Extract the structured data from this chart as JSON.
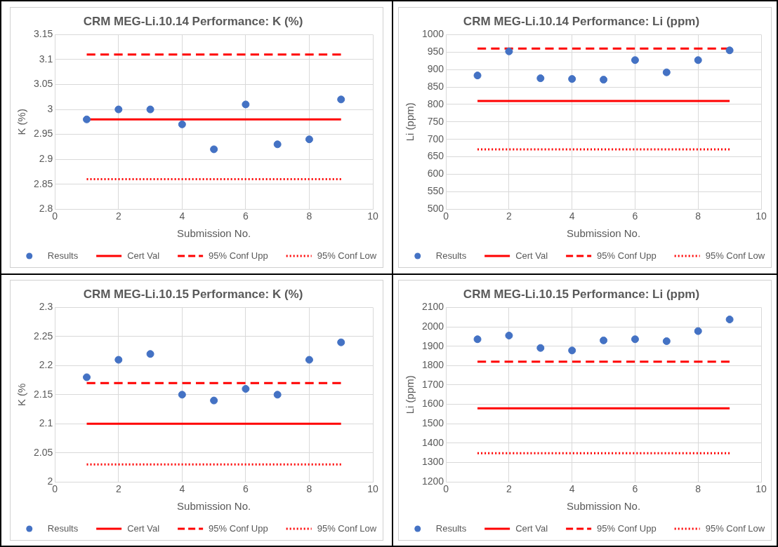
{
  "chart_data": [
    {
      "type": "scatter",
      "title": "CRM MEG-Li.10.14 Performance: K (%)",
      "xlabel": "Submission No.",
      "ylabel": "K (%)",
      "xlim": [
        0,
        10
      ],
      "xticks": [
        0,
        2,
        4,
        6,
        8,
        10
      ],
      "ylim": [
        2.8,
        3.15
      ],
      "yticks": [
        2.8,
        2.85,
        2.9,
        2.95,
        3,
        3.05,
        3.1,
        3.15
      ],
      "grid": true,
      "legend": "bottom",
      "series": [
        {
          "name": "Results",
          "type": "scatter",
          "marker": "circle",
          "color": "#4472c4",
          "x": [
            1,
            2,
            3,
            4,
            5,
            6,
            7,
            8,
            9
          ],
          "values": [
            2.98,
            3.0,
            3.0,
            2.97,
            2.92,
            3.01,
            2.93,
            2.94,
            3.02
          ]
        },
        {
          "name": "Cert Val",
          "type": "line",
          "marker": "none",
          "line_style": "solid",
          "color": "#ff0000",
          "x": [
            1,
            9
          ],
          "values": [
            2.98,
            2.98
          ]
        },
        {
          "name": "95% Conf Upp",
          "type": "line",
          "marker": "none",
          "line_style": "dashed",
          "color": "#ff0000",
          "x": [
            1,
            9
          ],
          "values": [
            3.11,
            3.11
          ]
        },
        {
          "name": "95% Conf Low",
          "type": "line",
          "marker": "none",
          "line_style": "dotted",
          "color": "#ff0000",
          "x": [
            1,
            9
          ],
          "values": [
            2.86,
            2.86
          ]
        }
      ]
    },
    {
      "type": "scatter",
      "title": "CRM MEG-Li.10.14 Performance: Li (ppm)",
      "xlabel": "Submission No.",
      "ylabel": "Li (ppm)",
      "xlim": [
        0,
        10
      ],
      "xticks": [
        0,
        2,
        4,
        6,
        8,
        10
      ],
      "ylim": [
        500,
        1000
      ],
      "yticks": [
        500,
        550,
        600,
        650,
        700,
        750,
        800,
        850,
        900,
        950,
        1000
      ],
      "grid": true,
      "legend": "bottom",
      "series": [
        {
          "name": "Results",
          "type": "scatter",
          "marker": "circle",
          "color": "#4472c4",
          "x": [
            1,
            2,
            3,
            4,
            5,
            6,
            7,
            8,
            9
          ],
          "values": [
            883,
            952,
            875,
            873,
            871,
            927,
            892,
            927,
            955
          ]
        },
        {
          "name": "Cert Val",
          "type": "line",
          "marker": "none",
          "line_style": "solid",
          "color": "#ff0000",
          "x": [
            1,
            9
          ],
          "values": [
            810,
            810
          ]
        },
        {
          "name": "95% Conf Upp",
          "type": "line",
          "marker": "none",
          "line_style": "dashed",
          "color": "#ff0000",
          "x": [
            1,
            9
          ],
          "values": [
            960,
            960
          ]
        },
        {
          "name": "95% Conf Low",
          "type": "line",
          "marker": "none",
          "line_style": "dotted",
          "color": "#ff0000",
          "x": [
            1,
            9
          ],
          "values": [
            671,
            671
          ]
        }
      ]
    },
    {
      "type": "scatter",
      "title": "CRM MEG-Li.10.15 Performance: K (%)",
      "xlabel": "Submission No.",
      "ylabel": "K (%",
      "xlim": [
        0,
        10
      ],
      "xticks": [
        0,
        2,
        4,
        6,
        8,
        10
      ],
      "ylim": [
        2,
        2.3
      ],
      "yticks": [
        2,
        2.05,
        2.1,
        2.15,
        2.2,
        2.25,
        2.3
      ],
      "grid": true,
      "legend": "bottom",
      "series": [
        {
          "name": "Results",
          "type": "scatter",
          "marker": "circle",
          "color": "#4472c4",
          "x": [
            1,
            2,
            3,
            4,
            5,
            6,
            7,
            8,
            9
          ],
          "values": [
            2.18,
            2.21,
            2.22,
            2.15,
            2.14,
            2.16,
            2.15,
            2.21,
            2.24
          ]
        },
        {
          "name": "Cert Val",
          "type": "line",
          "marker": "none",
          "line_style": "solid",
          "color": "#ff0000",
          "x": [
            1,
            9
          ],
          "values": [
            2.1,
            2.1
          ]
        },
        {
          "name": "95% Conf Upp",
          "type": "line",
          "marker": "none",
          "line_style": "dashed",
          "color": "#ff0000",
          "x": [
            1,
            9
          ],
          "values": [
            2.17,
            2.17
          ]
        },
        {
          "name": "95% Conf Low",
          "type": "line",
          "marker": "none",
          "line_style": "dotted",
          "color": "#ff0000",
          "x": [
            1,
            9
          ],
          "values": [
            2.03,
            2.03
          ]
        }
      ]
    },
    {
      "type": "scatter",
      "title": "CRM MEG-Li.10.15 Performance: Li (ppm)",
      "xlabel": "Submission No.",
      "ylabel": "Li (ppm)",
      "xlim": [
        0,
        10
      ],
      "xticks": [
        0,
        2,
        4,
        6,
        8,
        10
      ],
      "ylim": [
        1200,
        2100
      ],
      "yticks": [
        1200,
        1300,
        1400,
        1500,
        1600,
        1700,
        1800,
        1900,
        2000,
        2100
      ],
      "grid": true,
      "legend": "bottom",
      "series": [
        {
          "name": "Results",
          "type": "scatter",
          "marker": "circle",
          "color": "#4472c4",
          "x": [
            1,
            2,
            3,
            4,
            5,
            6,
            7,
            8,
            9
          ],
          "values": [
            1936,
            1955,
            1891,
            1878,
            1930,
            1936,
            1926,
            1978,
            2038
          ]
        },
        {
          "name": "Cert Val",
          "type": "line",
          "marker": "none",
          "line_style": "solid",
          "color": "#ff0000",
          "x": [
            1,
            9
          ],
          "values": [
            1580,
            1580
          ]
        },
        {
          "name": "95% Conf Upp",
          "type": "line",
          "marker": "none",
          "line_style": "dashed",
          "color": "#ff0000",
          "x": [
            1,
            9
          ],
          "values": [
            1820,
            1820
          ]
        },
        {
          "name": "95% Conf Low",
          "type": "line",
          "marker": "none",
          "line_style": "dotted",
          "color": "#ff0000",
          "x": [
            1,
            9
          ],
          "values": [
            1348,
            1348
          ]
        }
      ]
    }
  ]
}
